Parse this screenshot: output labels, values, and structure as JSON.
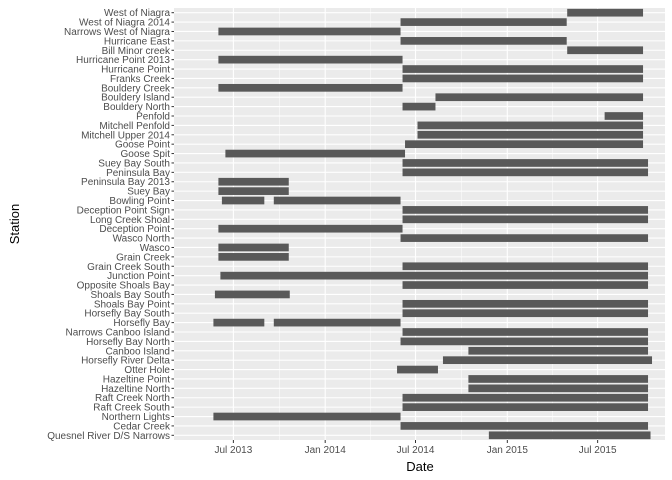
{
  "chart_data": {
    "type": "bar",
    "orientation": "horizontal-range",
    "xlabel": "Date",
    "ylabel": "Station",
    "x_type": "date",
    "xlim": [
      "2013-03-04",
      "2015-11-13"
    ],
    "x_ticks": [
      {
        "date": "2013-07-01",
        "label": "Jul 2013"
      },
      {
        "date": "2014-01-01",
        "label": "Jan 2014"
      },
      {
        "date": "2014-07-01",
        "label": "Jul 2014"
      },
      {
        "date": "2015-01-01",
        "label": "Jan 2015"
      },
      {
        "date": "2015-07-01",
        "label": "Jul 2015"
      }
    ],
    "grid": true,
    "legend": "none",
    "colors": {
      "panel": "#ebebeb",
      "grid": "#ffffff",
      "bar": "#595959"
    },
    "stations": [
      {
        "name": "West of Niagra",
        "ranges": [
          [
            "2015-05-01",
            "2015-09-30"
          ]
        ]
      },
      {
        "name": "West of Niagra 2014",
        "ranges": [
          [
            "2014-06-01",
            "2015-04-30"
          ]
        ]
      },
      {
        "name": "Narrows West of Niagra",
        "ranges": [
          [
            "2013-06-01",
            "2014-06-01"
          ]
        ]
      },
      {
        "name": "Hurricane East",
        "ranges": [
          [
            "2014-06-01",
            "2015-04-30"
          ]
        ]
      },
      {
        "name": "Bill Minor creek",
        "ranges": [
          [
            "2015-05-01",
            "2015-09-30"
          ]
        ]
      },
      {
        "name": "Hurricane Point 2013",
        "ranges": [
          [
            "2013-06-01",
            "2014-06-05"
          ]
        ]
      },
      {
        "name": "Hurricane Point",
        "ranges": [
          [
            "2014-06-05",
            "2015-09-30"
          ]
        ]
      },
      {
        "name": "Franks Creek",
        "ranges": [
          [
            "2014-06-05",
            "2015-09-30"
          ]
        ]
      },
      {
        "name": "Bouldery Creek",
        "ranges": [
          [
            "2013-06-01",
            "2014-06-05"
          ]
        ]
      },
      {
        "name": "Bouldery Island",
        "ranges": [
          [
            "2014-08-10",
            "2015-09-30"
          ]
        ]
      },
      {
        "name": "Bouldery North",
        "ranges": [
          [
            "2014-06-05",
            "2014-08-10"
          ]
        ]
      },
      {
        "name": "Penfold",
        "ranges": [
          [
            "2015-07-15",
            "2015-09-30"
          ]
        ]
      },
      {
        "name": "Mitchell Penfold",
        "ranges": [
          [
            "2014-07-05",
            "2015-09-30"
          ]
        ]
      },
      {
        "name": "Mitchell Upper 2014",
        "ranges": [
          [
            "2014-07-05",
            "2015-09-30"
          ]
        ]
      },
      {
        "name": "Goose Point",
        "ranges": [
          [
            "2014-06-10",
            "2015-09-30"
          ]
        ]
      },
      {
        "name": "Goose Spit",
        "ranges": [
          [
            "2013-06-15",
            "2014-06-10"
          ]
        ]
      },
      {
        "name": "Suey Bay South",
        "ranges": [
          [
            "2014-06-05",
            "2015-10-10"
          ]
        ]
      },
      {
        "name": "Peninsula Bay",
        "ranges": [
          [
            "2014-06-05",
            "2015-10-10"
          ]
        ]
      },
      {
        "name": "Peninsula Bay 2013",
        "ranges": [
          [
            "2013-06-01",
            "2013-10-20"
          ]
        ]
      },
      {
        "name": "Suey Bay",
        "ranges": [
          [
            "2013-06-01",
            "2013-10-20"
          ]
        ]
      },
      {
        "name": "Bowling Point",
        "ranges": [
          [
            "2013-06-08",
            "2013-09-01"
          ],
          [
            "2013-09-20",
            "2014-06-01"
          ]
        ]
      },
      {
        "name": "Deception Point Sign",
        "ranges": [
          [
            "2014-06-05",
            "2015-10-10"
          ]
        ]
      },
      {
        "name": "Long Creek Shoal",
        "ranges": [
          [
            "2014-06-05",
            "2015-10-10"
          ]
        ]
      },
      {
        "name": "Deception Point",
        "ranges": [
          [
            "2013-06-01",
            "2014-06-05"
          ]
        ]
      },
      {
        "name": "Wasco North",
        "ranges": [
          [
            "2014-06-01",
            "2015-10-10"
          ]
        ]
      },
      {
        "name": "Wasco",
        "ranges": [
          [
            "2013-06-01",
            "2013-10-20"
          ]
        ]
      },
      {
        "name": "Grain Creek",
        "ranges": [
          [
            "2013-06-01",
            "2013-10-20"
          ]
        ]
      },
      {
        "name": "Grain Creek South",
        "ranges": [
          [
            "2014-06-05",
            "2015-10-10"
          ]
        ]
      },
      {
        "name": "Junction Point",
        "ranges": [
          [
            "2013-06-05",
            "2015-10-10"
          ]
        ]
      },
      {
        "name": "Opposite Shoals Bay",
        "ranges": [
          [
            "2014-06-05",
            "2015-10-10"
          ]
        ]
      },
      {
        "name": "Shoals Bay South",
        "ranges": [
          [
            "2013-05-25",
            "2013-10-22"
          ]
        ]
      },
      {
        "name": "Shoals Bay Point",
        "ranges": [
          [
            "2014-06-05",
            "2015-10-10"
          ]
        ]
      },
      {
        "name": "Horsefly Bay South",
        "ranges": [
          [
            "2014-06-05",
            "2015-10-10"
          ]
        ]
      },
      {
        "name": "Horsefly Bay",
        "ranges": [
          [
            "2013-05-22",
            "2013-09-01"
          ],
          [
            "2013-09-20",
            "2014-06-01"
          ]
        ]
      },
      {
        "name": "Narrows Canboo Island",
        "ranges": [
          [
            "2014-06-05",
            "2015-10-10"
          ]
        ]
      },
      {
        "name": "Horsefly Bay North",
        "ranges": [
          [
            "2014-06-01",
            "2015-10-10"
          ]
        ]
      },
      {
        "name": "Canboo Island",
        "ranges": [
          [
            "2014-10-15",
            "2015-10-10"
          ]
        ]
      },
      {
        "name": "Horsefly River Delta",
        "ranges": [
          [
            "2014-08-25",
            "2015-10-18"
          ]
        ]
      },
      {
        "name": "Otter Hole",
        "ranges": [
          [
            "2014-05-25",
            "2014-08-15"
          ]
        ]
      },
      {
        "name": "Hazeltine Point",
        "ranges": [
          [
            "2014-10-15",
            "2015-10-10"
          ]
        ]
      },
      {
        "name": "Hazeltine North",
        "ranges": [
          [
            "2014-10-15",
            "2015-10-10"
          ]
        ]
      },
      {
        "name": "Raft Creek North",
        "ranges": [
          [
            "2014-06-05",
            "2015-10-10"
          ]
        ]
      },
      {
        "name": "Raft Creek South",
        "ranges": [
          [
            "2014-06-05",
            "2015-10-10"
          ]
        ]
      },
      {
        "name": "Northern Lights",
        "ranges": [
          [
            "2013-05-22",
            "2014-06-01"
          ]
        ]
      },
      {
        "name": "Cedar Creek",
        "ranges": [
          [
            "2014-06-01",
            "2015-10-10"
          ]
        ]
      },
      {
        "name": "Quesnel River D/S Narrows",
        "ranges": [
          [
            "2014-11-25",
            "2015-10-15"
          ]
        ]
      }
    ]
  }
}
